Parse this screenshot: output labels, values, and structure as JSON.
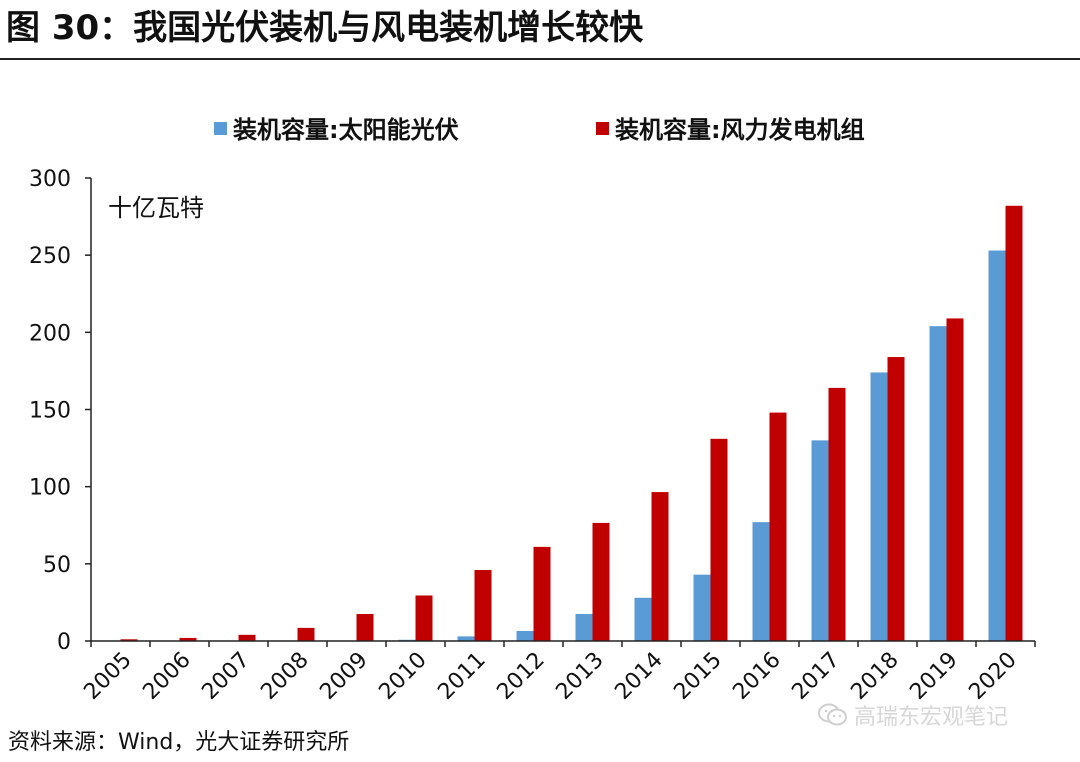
{
  "figure_title": "图 30：我国光伏装机与风电装机增长较快",
  "source_note": "资料来源：Wind，光大证券研究所",
  "watermark": {
    "text": "高瑞东宏观笔记",
    "icon": "wechat-icon"
  },
  "colors": {
    "solar": "#5b9bd5",
    "wind": "#c00000",
    "axis": "#222222",
    "text": "#111111"
  },
  "chart_data": {
    "type": "bar",
    "title": "",
    "unit_label": "十亿瓦特",
    "xlabel": "",
    "ylabel": "",
    "categories": [
      "2005",
      "2006",
      "2007",
      "2008",
      "2009",
      "2010",
      "2011",
      "2012",
      "2013",
      "2014",
      "2015",
      "2016",
      "2017",
      "2018",
      "2019",
      "2020"
    ],
    "series": [
      {
        "name": "装机容量:太阳能光伏",
        "color": "#5b9bd5",
        "values": [
          0.1,
          0.1,
          0.1,
          0.1,
          0.3,
          0.8,
          3,
          6.5,
          17.5,
          28,
          43,
          77,
          130,
          174,
          204,
          253
        ]
      },
      {
        "name": "装机容量:风力发电机组",
        "color": "#c00000",
        "values": [
          1.1,
          2,
          4,
          8.5,
          17.5,
          29.5,
          46,
          61,
          76.5,
          96.5,
          131,
          148,
          164,
          184,
          209,
          282
        ]
      }
    ],
    "ylim": [
      0,
      300
    ],
    "yticks": [
      0,
      50,
      100,
      150,
      200,
      250,
      300
    ],
    "grid": false,
    "legend_position": "top-center"
  }
}
